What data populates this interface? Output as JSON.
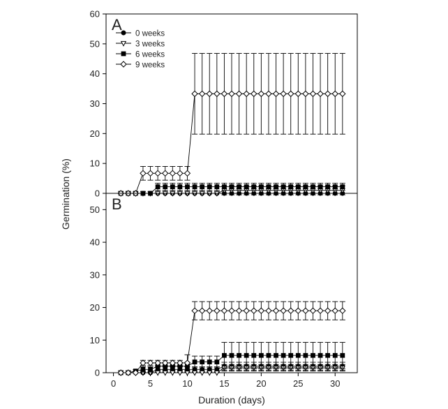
{
  "chart_data": [
    {
      "panel": "A",
      "type": "line",
      "title": "",
      "xlabel": "Duration (days)",
      "ylabel": "Germination (%)",
      "xlim": [
        -1,
        33
      ],
      "ylim": [
        0,
        60
      ],
      "yticks": [
        0,
        10,
        20,
        30,
        40,
        50,
        60
      ],
      "legend_position": "top-left",
      "series": [
        {
          "name": "0 weeks",
          "marker": "filled-circle",
          "x": [
            1,
            2,
            3,
            4,
            5,
            6,
            7,
            8,
            9,
            10,
            11,
            12,
            13,
            14,
            15,
            16,
            17,
            18,
            19,
            20,
            21,
            22,
            23,
            24,
            25,
            26,
            27,
            28,
            29,
            30,
            31
          ],
          "values": [
            0,
            0,
            0,
            0,
            0,
            0,
            0,
            0,
            0,
            0,
            0,
            0,
            0,
            0,
            0,
            0,
            0,
            0,
            0,
            0,
            0,
            0,
            0,
            0,
            0,
            0,
            0,
            0,
            0,
            0,
            0
          ],
          "err": [
            0,
            0,
            0,
            0,
            0,
            0,
            0,
            0,
            0,
            0,
            0,
            0,
            0,
            0,
            0,
            0,
            0,
            0,
            0,
            0,
            0,
            0,
            0,
            0,
            0,
            0,
            0,
            0,
            0,
            0,
            0
          ]
        },
        {
          "name": "3 weeks",
          "marker": "open-triangle-down",
          "x": [
            1,
            2,
            3,
            4,
            5,
            6,
            7,
            8,
            9,
            10,
            11,
            12,
            13,
            14,
            15,
            16,
            17,
            18,
            19,
            20,
            21,
            22,
            23,
            24,
            25,
            26,
            27,
            28,
            29,
            30,
            31
          ],
          "values": [
            0,
            0,
            0,
            0,
            0,
            0,
            0,
            0,
            0,
            0,
            0,
            0,
            0,
            0,
            1,
            1,
            1,
            1,
            1,
            1,
            1,
            1,
            1,
            1,
            1,
            1,
            1,
            1,
            1,
            1,
            1
          ],
          "err": [
            0,
            0,
            0,
            0,
            0,
            0,
            0,
            0,
            0,
            0,
            0,
            0,
            0,
            0,
            1.5,
            1.5,
            1.5,
            1.5,
            1.5,
            1.5,
            1.5,
            1.5,
            1.5,
            1.5,
            1.5,
            1.5,
            1.5,
            1.5,
            1.5,
            1.5,
            1.5
          ]
        },
        {
          "name": "6 weeks",
          "marker": "filled-square",
          "x": [
            1,
            2,
            3,
            4,
            5,
            6,
            7,
            8,
            9,
            10,
            11,
            12,
            13,
            14,
            15,
            16,
            17,
            18,
            19,
            20,
            21,
            22,
            23,
            24,
            25,
            26,
            27,
            28,
            29,
            30,
            31
          ],
          "values": [
            0,
            0,
            0,
            0,
            0,
            2.2,
            2.2,
            2.2,
            2.2,
            2.2,
            2.2,
            2.2,
            2.2,
            2.2,
            2.2,
            2.2,
            2.2,
            2.2,
            2.2,
            2.2,
            2.2,
            2.2,
            2.2,
            2.2,
            2.2,
            2.2,
            2.2,
            2.2,
            2.2,
            2.2,
            2.2
          ],
          "err": [
            0,
            0,
            0,
            0,
            0,
            1.2,
            1.2,
            1.2,
            1.2,
            1.2,
            1.2,
            1.2,
            1.2,
            1.2,
            1.2,
            1.2,
            1.2,
            1.2,
            1.2,
            1.2,
            1.2,
            1.2,
            1.2,
            1.2,
            1.2,
            1.2,
            1.2,
            1.2,
            1.2,
            1.2,
            1.2
          ]
        },
        {
          "name": "9 weeks",
          "marker": "open-diamond",
          "x": [
            1,
            2,
            3,
            4,
            5,
            6,
            7,
            8,
            9,
            10,
            11,
            12,
            13,
            14,
            15,
            16,
            17,
            18,
            19,
            20,
            21,
            22,
            23,
            24,
            25,
            26,
            27,
            28,
            29,
            30,
            31
          ],
          "values": [
            0,
            0,
            0,
            6.7,
            6.7,
            6.7,
            6.7,
            6.7,
            6.7,
            6.7,
            33.3,
            33.3,
            33.3,
            33.3,
            33.3,
            33.3,
            33.3,
            33.3,
            33.3,
            33.3,
            33.3,
            33.3,
            33.3,
            33.3,
            33.3,
            33.3,
            33.3,
            33.3,
            33.3,
            33.3,
            33.3
          ],
          "err": [
            0,
            0,
            0,
            2.3,
            2.3,
            2.3,
            2.3,
            2.3,
            2.3,
            2.3,
            13.5,
            13.5,
            13.5,
            13.5,
            13.5,
            13.5,
            13.5,
            13.5,
            13.5,
            13.5,
            13.5,
            13.5,
            13.5,
            13.5,
            13.5,
            13.5,
            13.5,
            13.5,
            13.5,
            13.5,
            13.5
          ]
        }
      ]
    },
    {
      "panel": "B",
      "type": "line",
      "title": "",
      "xlabel": "Duration (days)",
      "ylabel": "Germination (%)",
      "xlim": [
        -1,
        33
      ],
      "ylim": [
        0,
        55
      ],
      "yticks": [
        0,
        10,
        20,
        30,
        40,
        50
      ],
      "xticks": [
        0,
        5,
        10,
        15,
        20,
        25,
        30
      ],
      "series": [
        {
          "name": "0 weeks",
          "marker": "filled-circle",
          "x": [
            1,
            2,
            3,
            4,
            5,
            6,
            7,
            8,
            9,
            10,
            11,
            12,
            13,
            14,
            15,
            16,
            17,
            18,
            19,
            20,
            21,
            22,
            23,
            24,
            25,
            26,
            27,
            28,
            29,
            30,
            31
          ],
          "values": [
            0,
            0,
            0,
            0,
            0,
            1,
            1,
            1,
            1,
            1,
            1,
            1,
            1,
            1,
            2,
            2,
            2,
            2,
            2,
            2,
            2,
            2,
            2,
            2,
            2,
            2,
            2,
            2,
            2,
            2,
            2
          ],
          "err": [
            0,
            0,
            0,
            0,
            0,
            0.8,
            0.8,
            0.8,
            0.8,
            0.8,
            0.8,
            0.8,
            0.8,
            0.8,
            1.2,
            1.2,
            1.2,
            1.2,
            1.2,
            1.2,
            1.2,
            1.2,
            1.2,
            1.2,
            1.2,
            1.2,
            1.2,
            1.2,
            1.2,
            1.2,
            1.2
          ]
        },
        {
          "name": "3 weeks",
          "marker": "open-triangle-down",
          "x": [
            1,
            2,
            3,
            4,
            5,
            6,
            7,
            8,
            9,
            10,
            11,
            12,
            13,
            14,
            15,
            16,
            17,
            18,
            19,
            20,
            21,
            22,
            23,
            24,
            25,
            26,
            27,
            28,
            29,
            30,
            31
          ],
          "values": [
            0,
            0,
            0,
            0,
            0,
            0,
            0,
            0,
            0,
            0,
            0,
            0,
            0,
            0,
            1.5,
            1.5,
            1.5,
            1.5,
            1.5,
            1.5,
            1.5,
            1.5,
            1.5,
            1.5,
            1.5,
            1.5,
            1.5,
            1.5,
            1.5,
            1.5,
            1.5
          ],
          "err": [
            0,
            0,
            0,
            0,
            0,
            0,
            0,
            0,
            0,
            0,
            0,
            0,
            0,
            0,
            1,
            1,
            1,
            1,
            1,
            1,
            1,
            1,
            1,
            1,
            1,
            1,
            1,
            1,
            1,
            1,
            1
          ]
        },
        {
          "name": "6 weeks",
          "marker": "filled-square",
          "x": [
            1,
            2,
            3,
            4,
            5,
            6,
            7,
            8,
            9,
            10,
            11,
            12,
            13,
            14,
            15,
            16,
            17,
            18,
            19,
            20,
            21,
            22,
            23,
            24,
            25,
            26,
            27,
            28,
            29,
            30,
            31
          ],
          "values": [
            0,
            0,
            0.5,
            1,
            1,
            2,
            2,
            2,
            2,
            2,
            3.3,
            3.3,
            3.3,
            3.3,
            5.3,
            5.3,
            5.3,
            5.3,
            5.3,
            5.3,
            5.3,
            5.3,
            5.3,
            5.3,
            5.3,
            5.3,
            5.3,
            5.3,
            5.3,
            5.3,
            5.3
          ],
          "err": [
            0,
            0,
            0.5,
            0.8,
            0.8,
            1.2,
            1.2,
            1.2,
            1.2,
            1.2,
            1.8,
            1.8,
            1.8,
            1.8,
            4,
            4,
            4,
            4,
            4,
            4,
            4,
            4,
            4,
            4,
            4,
            4,
            4,
            4,
            4,
            4,
            4
          ]
        },
        {
          "name": "9 weeks",
          "marker": "open-diamond",
          "x": [
            1,
            2,
            3,
            4,
            5,
            6,
            7,
            8,
            9,
            10,
            11,
            12,
            13,
            14,
            15,
            16,
            17,
            18,
            19,
            20,
            21,
            22,
            23,
            24,
            25,
            26,
            27,
            28,
            29,
            30,
            31
          ],
          "values": [
            0,
            0,
            0,
            3,
            3,
            3,
            3,
            3,
            3,
            3,
            19,
            19,
            19,
            19,
            19,
            19,
            19,
            19,
            19,
            19,
            19,
            19,
            19,
            19,
            19,
            19,
            19,
            19,
            19,
            19,
            19
          ],
          "err": [
            0,
            0,
            0,
            0.8,
            0.8,
            0.8,
            0.8,
            0.8,
            0.8,
            2.5,
            2.8,
            2.8,
            2.8,
            2.8,
            2.8,
            2.8,
            2.8,
            2.8,
            2.8,
            2.8,
            2.8,
            2.8,
            2.8,
            2.8,
            2.8,
            2.8,
            2.8,
            2.8,
            2.8,
            2.8,
            2.8
          ]
        }
      ]
    }
  ]
}
